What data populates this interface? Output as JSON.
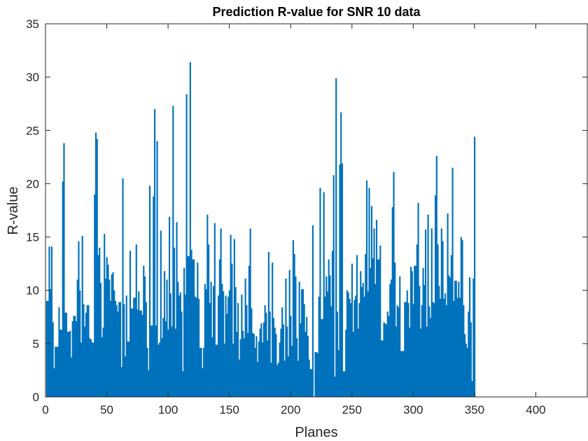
{
  "chart_data": {
    "type": "bar",
    "title": "Prediction R-value for SNR 10 data",
    "xlabel": "Planes",
    "ylabel": "R-value",
    "xlim": [
      0,
      442
    ],
    "ylim": [
      0,
      35
    ],
    "xticks": [
      0,
      50,
      100,
      150,
      200,
      250,
      300,
      350,
      400
    ],
    "yticks": [
      0,
      5,
      10,
      15,
      20,
      25,
      30,
      35
    ],
    "grid": false,
    "legend": "none",
    "color": "#0072BD",
    "x_start": 1,
    "x_step": 1,
    "values": [
      9.0,
      9.0,
      14.1,
      10.1,
      14.1,
      7.0,
      2.7,
      4.7,
      4.7,
      4.7,
      8.4,
      6.3,
      6.3,
      20.2,
      23.8,
      7.9,
      7.9,
      6.1,
      6.1,
      6.2,
      3.7,
      7.1,
      7.6,
      7.6,
      7.1,
      11.0,
      14.6,
      10.0,
      5.1,
      15.1,
      8.7,
      6.6,
      7.9,
      8.6,
      8.6,
      5.5,
      5.4,
      5.1,
      5.1,
      19.0,
      24.8,
      24.2,
      13.3,
      14.0,
      10.7,
      5.6,
      6.5,
      15.3,
      11.1,
      13.1,
      12.4,
      11.0,
      9.0,
      11.5,
      11.7,
      10.0,
      9.0,
      8.6,
      8.0,
      8.9,
      8.9,
      2.8,
      20.5,
      8.7,
      3.8,
      9.5,
      5.2,
      5.2,
      13.7,
      8.3,
      8.3,
      9.3,
      9.3,
      14.3,
      8.2,
      9.9,
      8.1,
      8.1,
      7.7,
      12.3,
      11.3,
      8.9,
      4.6,
      2.5,
      19.8,
      6.7,
      6.7,
      18.8,
      27.0,
      6.7,
      24.0,
      4.9,
      5.1,
      15.6,
      5.5,
      7.4,
      11.8,
      7.1,
      11.0,
      6.3,
      16.9,
      9.7,
      6.6,
      27.3,
      14.0,
      6.4,
      16.4,
      10.8,
      9.5,
      9.8,
      8.0,
      2.4,
      12.1,
      9.6,
      28.4,
      13.2,
      13.2,
      31.4,
      13.8,
      12.9,
      12.9,
      9.4,
      9.3,
      12.6,
      9.2,
      4.6,
      4.6,
      2.7,
      4.6,
      10.6,
      10.1,
      17.1,
      14.3,
      8.8,
      10.8,
      5.6,
      10.4,
      16.3,
      4.9,
      4.9,
      9.5,
      12.9,
      15.8,
      10.6,
      9.9,
      5.0,
      9.5,
      7.8,
      9.4,
      10.0,
      15.2,
      12.5,
      5.0,
      14.8,
      10.3,
      6.1,
      8.8,
      3.5,
      5.4,
      9.6,
      6.2,
      5.5,
      11.1,
      8.6,
      6.0,
      12.3,
      15.8,
      8.3,
      6.0,
      5.9,
      4.6,
      5.7,
      3.3,
      5.2,
      6.4,
      6.9,
      5.1,
      7.0,
      8.6,
      7.9,
      5.3,
      13.6,
      8.0,
      3.2,
      12.6,
      7.4,
      6.5,
      5.9,
      3.0,
      3.2,
      5.1,
      6.4,
      8.4,
      6.8,
      3.4,
      11.1,
      6.6,
      3.8,
      11.9,
      7.6,
      4.8,
      14.7,
      13.4,
      11.3,
      5.5,
      3.4,
      10.8,
      6.9,
      10.1,
      10.1,
      8.7,
      6.1,
      7.5,
      5.7,
      3.5,
      2.6,
      2.6,
      16.1,
      0.0,
      4.2,
      4.2,
      4.1,
      9.4,
      19.6,
      7.3,
      7.3,
      19.2,
      9.4,
      11.3,
      9.9,
      12.9,
      11.4,
      8.5,
      13.7,
      20.8,
      1.9,
      29.9,
      8.0,
      4.4,
      21.8,
      26.7,
      21.9,
      2.4,
      2.4,
      6.3,
      10.0,
      9.8,
      9.2,
      8.8,
      12.5,
      6.1,
      9.1,
      9.5,
      13.3,
      6.4,
      8.8,
      11.8,
      10.3,
      10.7,
      9.4,
      13.4,
      20.3,
      9.9,
      19.6,
      12.1,
      17.9,
      13.0,
      15.8,
      10.6,
      16.6,
      12.9,
      12.9,
      14.2,
      5.3,
      5.3,
      7.0,
      6.9,
      6.8,
      8.0,
      7.6,
      10.6,
      11.0,
      17.8,
      21.1,
      12.6,
      6.6,
      8.6,
      8.4,
      11.3,
      4.3,
      4.3,
      4.3,
      8.9,
      8.9,
      10.0,
      8.8,
      6.5,
      12.2,
      11.8,
      8.7,
      12.3,
      12.3,
      14.3,
      18.2,
      10.4,
      6.4,
      8.6,
      12.1,
      10.5,
      15.7,
      6.6,
      17.1,
      8.5,
      7.4,
      15.8,
      8.9,
      8.8,
      18.9,
      22.6,
      14.3,
      10.4,
      9.2,
      15.8,
      14.6,
      9.2,
      9.7,
      8.6,
      17.2,
      11.4,
      11.2,
      13.3,
      21.5,
      9.0,
      10.9,
      10.9,
      9.3,
      10.8,
      9.3,
      15.0,
      14.7,
      8.6,
      5.9,
      5.0,
      4.6,
      8.0,
      11.2,
      7.0,
      1.5,
      11.1,
      24.4
    ]
  }
}
